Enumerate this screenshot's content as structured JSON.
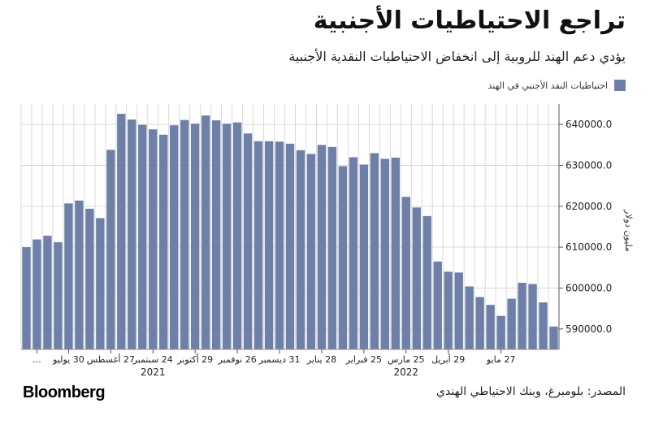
{
  "header": {
    "title": "تراجع الاحتياطيات الأجنبية",
    "subtitle": "يؤدي دعم الهند للروبية إلى انخفاض الاحتياطيات النقدية الأجنبية"
  },
  "legend": {
    "label": "احتياطيات النقد الأجنبي في الهند",
    "color": "#6e80a7"
  },
  "footer": {
    "logo": "Bloomberg",
    "source": "المصدر: بلومبرغ، وبنك الاحتياطي الهندي"
  },
  "chart_data": {
    "type": "bar",
    "title": "تراجع الاحتياطيات الأجنبية",
    "ylabel": "مليون دولار",
    "ylim": [
      585000,
      645000
    ],
    "yticks": [
      590000,
      600000,
      610000,
      620000,
      630000,
      640000
    ],
    "ytick_labels": [
      "590000.0",
      "600000.0",
      "610000.0",
      "620000.0",
      "630000.0",
      "640000.0"
    ],
    "grid": true,
    "legend_position": "top-right",
    "bar_color": "#6e80a7",
    "values": [
      610000,
      611900,
      612800,
      611200,
      620700,
      621400,
      619400,
      617100,
      633800,
      642600,
      641200,
      639900,
      638800,
      637500,
      639800,
      641100,
      640200,
      642200,
      641000,
      640200,
      640500,
      637800,
      635900,
      635900,
      635800,
      635300,
      633700,
      632800,
      635000,
      634500,
      629800,
      632000,
      630200,
      633000,
      631600,
      631900,
      622300,
      619700,
      617600,
      606500,
      604000,
      603800,
      600400,
      597800,
      595900,
      593200,
      597400,
      601300,
      601000,
      596500,
      590600
    ],
    "x_ticks": [
      {
        "index": 1,
        "label": "..."
      },
      {
        "index": 4,
        "label": "30 يوليو"
      },
      {
        "index": 8,
        "label": "27 أغسطس"
      },
      {
        "index": 12,
        "label": "24 سبتمبر"
      },
      {
        "index": 16,
        "label": "29 أكتوبر"
      },
      {
        "index": 20,
        "label": "26 نوفمبر"
      },
      {
        "index": 24,
        "label": "31 ديسمبر"
      },
      {
        "index": 28,
        "label": "28 يناير"
      },
      {
        "index": 32,
        "label": "25 فبراير"
      },
      {
        "index": 36,
        "label": "25 مارس"
      },
      {
        "index": 40,
        "label": "29 أبريل"
      },
      {
        "index": 45,
        "label": "27 مايو"
      }
    ],
    "years": [
      {
        "index": 12,
        "label": "2021"
      },
      {
        "index": 36,
        "label": "2022"
      }
    ]
  }
}
